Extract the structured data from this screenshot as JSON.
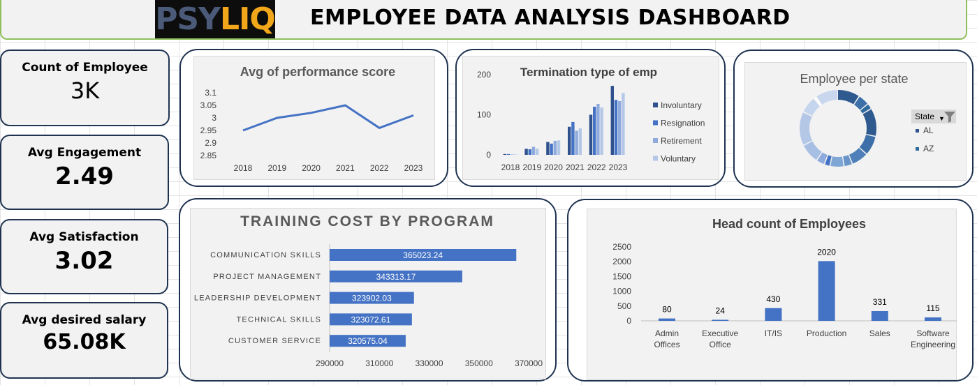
{
  "header": {
    "logo_left": "PSY",
    "logo_right": "LIQ",
    "title": "EMPLOYEE DATA ANALYSIS DASHBOARD"
  },
  "kpis": [
    {
      "label": "Count of Employee",
      "value": "3K"
    },
    {
      "label": "Avg Engagement",
      "value": "2.49"
    },
    {
      "label": "Avg Satisfaction",
      "value": "3.02"
    },
    {
      "label": "Avg desired salary",
      "value": "65.08K"
    }
  ],
  "colors": {
    "navy": "#1f3350",
    "bar_blue": "#4472c4",
    "green_border": "#8fbf5a",
    "panel_bg": "#f2f2f2"
  },
  "chart_data": [
    {
      "id": "performance",
      "type": "line",
      "title": "Avg of performance score",
      "x": [
        "2018",
        "2019",
        "2020",
        "2021",
        "2022",
        "2023"
      ],
      "values": [
        2.95,
        3.0,
        3.02,
        3.05,
        2.96,
        3.01
      ],
      "yticks": [
        "2.85",
        "2.9",
        "2.95",
        "3",
        "3.05",
        "3.1"
      ],
      "ylim": [
        2.85,
        3.1
      ],
      "color": "#4472c4"
    },
    {
      "id": "termination",
      "type": "bar",
      "title": "Termination type of emp",
      "categories": [
        "2018",
        "2019",
        "2020",
        "2021",
        "2022",
        "2023"
      ],
      "yticks": [
        "0",
        "100",
        "200"
      ],
      "ylim": [
        0,
        200
      ],
      "legend_position": "right",
      "series": [
        {
          "name": "Involuntary",
          "color": "#2f528f",
          "values": [
            2,
            15,
            32,
            70,
            100,
            172
          ]
        },
        {
          "name": "Resignation",
          "color": "#4472c4",
          "values": [
            2,
            14,
            28,
            82,
            120,
            137
          ]
        },
        {
          "name": "Retirement",
          "color": "#8faadc",
          "values": [
            1,
            20,
            35,
            60,
            127,
            134
          ]
        },
        {
          "name": "Voluntary",
          "color": "#b4c7e7",
          "values": [
            1,
            15,
            36,
            66,
            118,
            154
          ]
        }
      ]
    },
    {
      "id": "state",
      "type": "pie",
      "title": "Employee per state",
      "filter_label": "State",
      "legend": [
        {
          "name": "AL",
          "color": "#2f528f"
        },
        {
          "name": "AZ",
          "color": "#2e6a9e"
        }
      ],
      "slices": [
        {
          "value": 8,
          "color": "#2f5a8f"
        },
        {
          "value": 4,
          "color": "#3d6fa8"
        },
        {
          "value": 2,
          "color": "#2e6a9e"
        },
        {
          "value": 10,
          "color": "#2f5a8f"
        },
        {
          "value": 7,
          "color": "#3d6fa8"
        },
        {
          "value": 6,
          "color": "#4f80b9"
        },
        {
          "value": 3,
          "color": "#6a95c8"
        },
        {
          "value": 5,
          "color": "#7fa6d4"
        },
        {
          "value": 2,
          "color": "#4472c4"
        },
        {
          "value": 3,
          "color": "#8faadc"
        },
        {
          "value": 7,
          "color": "#a7bfe3"
        },
        {
          "value": 12,
          "color": "#b4c7e7"
        },
        {
          "value": 6,
          "color": "#c5d5ee"
        },
        {
          "value": 1,
          "color": "#ffffff"
        },
        {
          "value": 8,
          "color": "#c9d7ee"
        }
      ]
    },
    {
      "id": "training",
      "type": "bar",
      "orientation": "horizontal",
      "title": "TRAINING COST BY PROGRAM",
      "categories": [
        "COMMUNICATION SKILLS",
        "PROJECT MANAGEMENT",
        "LEADERSHIP DEVELOPMENT",
        "TECHNICAL SKILLS",
        "CUSTOMER SERVICE"
      ],
      "values": [
        365023.24,
        343313.17,
        323902.03,
        323072.61,
        320575.04
      ],
      "labels": [
        "365023.24",
        "343313.17",
        "323902.03",
        "323072.61",
        "320575.04"
      ],
      "xticks": [
        "290000",
        "310000",
        "330000",
        "350000",
        "370000"
      ],
      "xlim": [
        290000,
        370000
      ],
      "color": "#4472c4"
    },
    {
      "id": "headcount",
      "type": "bar",
      "title": "Head count of Employees",
      "categories": [
        [
          "Admin",
          "Offices"
        ],
        [
          "Executive",
          "Office"
        ],
        [
          "IT/IS"
        ],
        [
          "Production"
        ],
        [
          "Sales"
        ],
        [
          "Software",
          "Engineering"
        ]
      ],
      "values": [
        80,
        24,
        430,
        2020,
        331,
        115
      ],
      "labels": [
        "80",
        "24",
        "430",
        "2020",
        "331",
        "115"
      ],
      "yticks": [
        "0",
        "500",
        "1000",
        "1500",
        "2000",
        "2500"
      ],
      "ylim": [
        0,
        2500
      ],
      "color": "#4472c4"
    }
  ]
}
